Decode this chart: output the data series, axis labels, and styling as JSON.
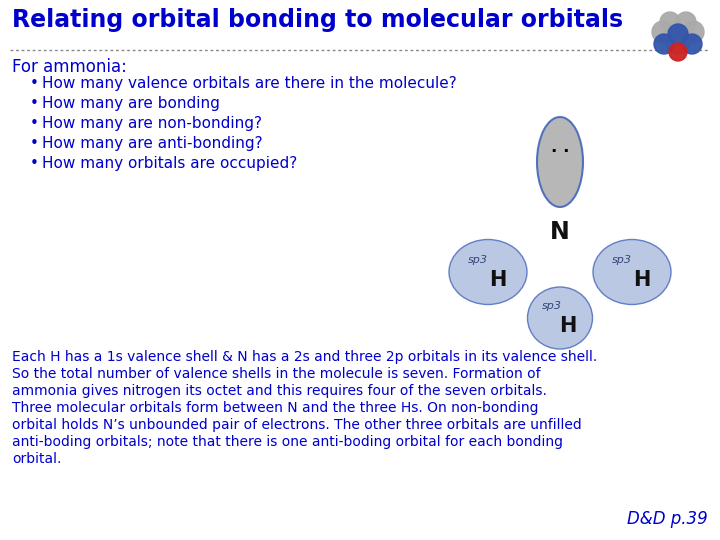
{
  "title": "Relating orbital bonding to molecular orbitals",
  "title_color": "#0000CC",
  "title_fontsize": 17,
  "bg_color": "#FFFFFF",
  "header_label": "For ammonia:",
  "bullets": [
    "How many valence orbitals are there in the molecule?",
    "How many are bonding",
    "How many are non-bonding?",
    "How many are anti-bonding?",
    "How many orbitals are occupied?"
  ],
  "body_text": "Each H has a 1s valence shell & N has a 2s and three 2p orbitals in its valence shell.\nSo the total number of valence shells in the molecule is seven. Formation of\nammonia gives nitrogen its octet and this requires four of the seven orbitals.\nThree molecular orbitals form between N and the three Hs. On non-bonding\norbital holds N’s unbounded pair of electrons. The other three orbitals are unfilled\nanti-boding orbitals; note that there is one anti-boding orbital for each bonding\norbital.",
  "page_ref": "D&D p.39",
  "text_color": "#0000CC",
  "dotted_line_color": "#888888",
  "bullet_fontsize": 11,
  "body_fontsize": 10,
  "header_fontsize": 12
}
